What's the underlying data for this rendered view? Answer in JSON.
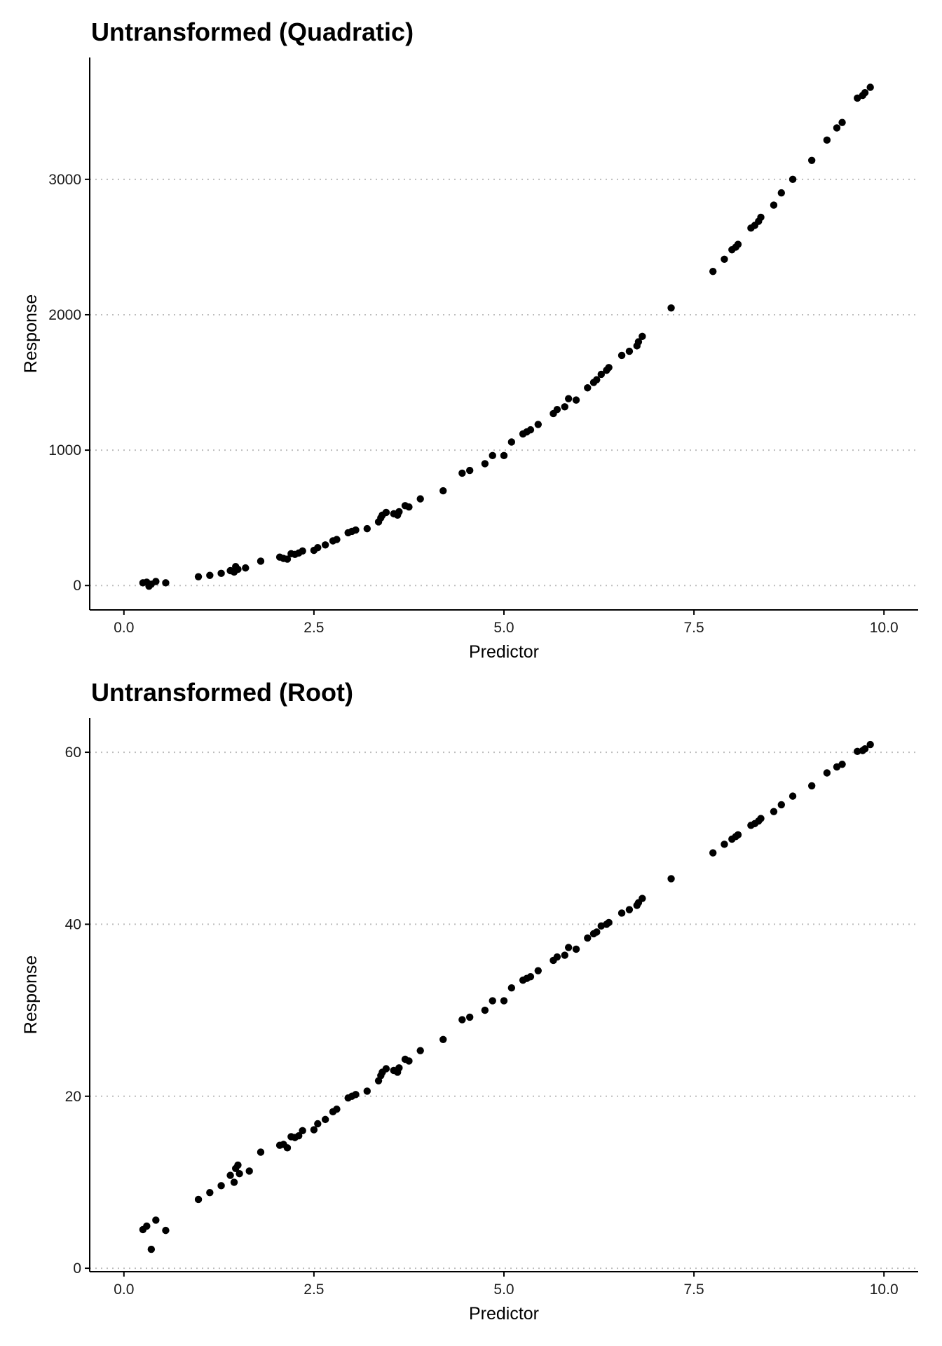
{
  "chart_data": [
    {
      "type": "scatter",
      "title": "Untransformed (Quadratic)",
      "xlabel": "Predictor",
      "ylabel": "Response",
      "xlim": [
        -0.45,
        10.45
      ],
      "ylim": [
        -180,
        3900
      ],
      "xticks": [
        0,
        2.5,
        5,
        7.5,
        10
      ],
      "xtick_labels": [
        "0.0",
        "2.5",
        "5.0",
        "7.5",
        "10.0"
      ],
      "yticks": [
        0,
        1000,
        2000,
        3000
      ],
      "ytick_labels": [
        "0",
        "1000",
        "2000",
        "3000"
      ],
      "grid": "horizontal dotted",
      "legend": "none",
      "points": [
        [
          0.25,
          20
        ],
        [
          0.3,
          25
        ],
        [
          0.33,
          -5
        ],
        [
          0.36,
          10
        ],
        [
          0.42,
          30
        ],
        [
          0.55,
          20
        ],
        [
          0.98,
          65
        ],
        [
          1.13,
          75
        ],
        [
          1.28,
          90
        ],
        [
          1.4,
          110
        ],
        [
          1.45,
          100
        ],
        [
          1.47,
          140
        ],
        [
          1.5,
          120
        ],
        [
          1.6,
          130
        ],
        [
          1.8,
          180
        ],
        [
          2.05,
          210
        ],
        [
          2.1,
          200
        ],
        [
          2.15,
          195
        ],
        [
          2.2,
          235
        ],
        [
          2.25,
          230
        ],
        [
          2.3,
          240
        ],
        [
          2.35,
          255
        ],
        [
          2.5,
          260
        ],
        [
          2.55,
          280
        ],
        [
          2.65,
          300
        ],
        [
          2.75,
          330
        ],
        [
          2.8,
          340
        ],
        [
          2.95,
          390
        ],
        [
          3.0,
          400
        ],
        [
          3.05,
          410
        ],
        [
          3.2,
          420
        ],
        [
          3.35,
          470
        ],
        [
          3.38,
          500
        ],
        [
          3.4,
          520
        ],
        [
          3.45,
          540
        ],
        [
          3.55,
          530
        ],
        [
          3.6,
          520
        ],
        [
          3.62,
          545
        ],
        [
          3.7,
          590
        ],
        [
          3.75,
          580
        ],
        [
          3.9,
          640
        ],
        [
          4.2,
          700
        ],
        [
          4.45,
          830
        ],
        [
          4.55,
          850
        ],
        [
          4.75,
          900
        ],
        [
          4.85,
          960
        ],
        [
          5.0,
          960
        ],
        [
          5.1,
          1060
        ],
        [
          5.25,
          1120
        ],
        [
          5.3,
          1135
        ],
        [
          5.35,
          1150
        ],
        [
          5.45,
          1190
        ],
        [
          5.65,
          1270
        ],
        [
          5.7,
          1300
        ],
        [
          5.8,
          1320
        ],
        [
          5.85,
          1380
        ],
        [
          5.95,
          1370
        ],
        [
          6.1,
          1460
        ],
        [
          6.18,
          1500
        ],
        [
          6.22,
          1520
        ],
        [
          6.28,
          1560
        ],
        [
          6.35,
          1590
        ],
        [
          6.38,
          1610
        ],
        [
          6.55,
          1700
        ],
        [
          6.65,
          1730
        ],
        [
          6.75,
          1770
        ],
        [
          6.77,
          1800
        ],
        [
          6.82,
          1840
        ],
        [
          7.2,
          2050
        ],
        [
          7.75,
          2320
        ],
        [
          7.9,
          2410
        ],
        [
          8.0,
          2480
        ],
        [
          8.05,
          2500
        ],
        [
          8.08,
          2520
        ],
        [
          8.25,
          2640
        ],
        [
          8.3,
          2660
        ],
        [
          8.35,
          2690
        ],
        [
          8.38,
          2720
        ],
        [
          8.55,
          2810
        ],
        [
          8.65,
          2900
        ],
        [
          8.8,
          3000
        ],
        [
          9.05,
          3140
        ],
        [
          9.25,
          3290
        ],
        [
          9.38,
          3380
        ],
        [
          9.45,
          3420
        ],
        [
          9.65,
          3600
        ],
        [
          9.72,
          3620
        ],
        [
          9.75,
          3640
        ],
        [
          9.82,
          3680
        ]
      ]
    },
    {
      "type": "scatter",
      "title": "Untransformed (Root)",
      "xlabel": "Predictor",
      "ylabel": "Response",
      "xlim": [
        -0.45,
        10.45
      ],
      "ylim": [
        -0.4,
        64
      ],
      "xticks": [
        0,
        2.5,
        5,
        7.5,
        10
      ],
      "xtick_labels": [
        "0.0",
        "2.5",
        "5.0",
        "7.5",
        "10.0"
      ],
      "yticks": [
        0,
        20,
        40,
        60
      ],
      "ytick_labels": [
        "0",
        "20",
        "40",
        "60"
      ],
      "grid": "horizontal dotted",
      "legend": "none",
      "points": [
        [
          0.25,
          4.5
        ],
        [
          0.3,
          4.9
        ],
        [
          0.36,
          2.2
        ],
        [
          0.42,
          5.6
        ],
        [
          0.55,
          4.4
        ],
        [
          0.98,
          8.0
        ],
        [
          1.13,
          8.8
        ],
        [
          1.28,
          9.6
        ],
        [
          1.4,
          10.8
        ],
        [
          1.45,
          10.0
        ],
        [
          1.47,
          11.6
        ],
        [
          1.5,
          12.0
        ],
        [
          1.52,
          11.0
        ],
        [
          1.65,
          11.3
        ],
        [
          1.8,
          13.5
        ],
        [
          2.05,
          14.3
        ],
        [
          2.1,
          14.4
        ],
        [
          2.15,
          14.0
        ],
        [
          2.2,
          15.3
        ],
        [
          2.25,
          15.2
        ],
        [
          2.3,
          15.4
        ],
        [
          2.35,
          16.0
        ],
        [
          2.5,
          16.1
        ],
        [
          2.55,
          16.8
        ],
        [
          2.65,
          17.3
        ],
        [
          2.75,
          18.2
        ],
        [
          2.8,
          18.5
        ],
        [
          2.95,
          19.8
        ],
        [
          3.0,
          20.0
        ],
        [
          3.05,
          20.2
        ],
        [
          3.2,
          20.6
        ],
        [
          3.35,
          21.8
        ],
        [
          3.38,
          22.4
        ],
        [
          3.4,
          22.8
        ],
        [
          3.45,
          23.2
        ],
        [
          3.55,
          23.0
        ],
        [
          3.6,
          22.8
        ],
        [
          3.62,
          23.3
        ],
        [
          3.7,
          24.3
        ],
        [
          3.75,
          24.1
        ],
        [
          3.9,
          25.3
        ],
        [
          4.2,
          26.6
        ],
        [
          4.45,
          28.9
        ],
        [
          4.55,
          29.2
        ],
        [
          4.75,
          30.0
        ],
        [
          4.85,
          31.1
        ],
        [
          5.0,
          31.1
        ],
        [
          5.1,
          32.6
        ],
        [
          5.25,
          33.5
        ],
        [
          5.3,
          33.7
        ],
        [
          5.35,
          33.9
        ],
        [
          5.45,
          34.6
        ],
        [
          5.65,
          35.8
        ],
        [
          5.7,
          36.2
        ],
        [
          5.8,
          36.4
        ],
        [
          5.85,
          37.3
        ],
        [
          5.95,
          37.1
        ],
        [
          6.1,
          38.4
        ],
        [
          6.18,
          38.9
        ],
        [
          6.22,
          39.1
        ],
        [
          6.28,
          39.8
        ],
        [
          6.35,
          40.0
        ],
        [
          6.38,
          40.2
        ],
        [
          6.55,
          41.3
        ],
        [
          6.65,
          41.7
        ],
        [
          6.75,
          42.2
        ],
        [
          6.77,
          42.5
        ],
        [
          6.82,
          43.0
        ],
        [
          7.2,
          45.3
        ],
        [
          7.75,
          48.3
        ],
        [
          7.9,
          49.3
        ],
        [
          8.0,
          49.9
        ],
        [
          8.05,
          50.2
        ],
        [
          8.08,
          50.4
        ],
        [
          8.25,
          51.5
        ],
        [
          8.3,
          51.7
        ],
        [
          8.35,
          52.0
        ],
        [
          8.38,
          52.3
        ],
        [
          8.55,
          53.1
        ],
        [
          8.65,
          53.9
        ],
        [
          8.8,
          54.9
        ],
        [
          9.05,
          56.1
        ],
        [
          9.25,
          57.6
        ],
        [
          9.38,
          58.3
        ],
        [
          9.45,
          58.6
        ],
        [
          9.65,
          60.1
        ],
        [
          9.72,
          60.2
        ],
        [
          9.75,
          60.4
        ],
        [
          9.82,
          60.9
        ]
      ]
    }
  ]
}
